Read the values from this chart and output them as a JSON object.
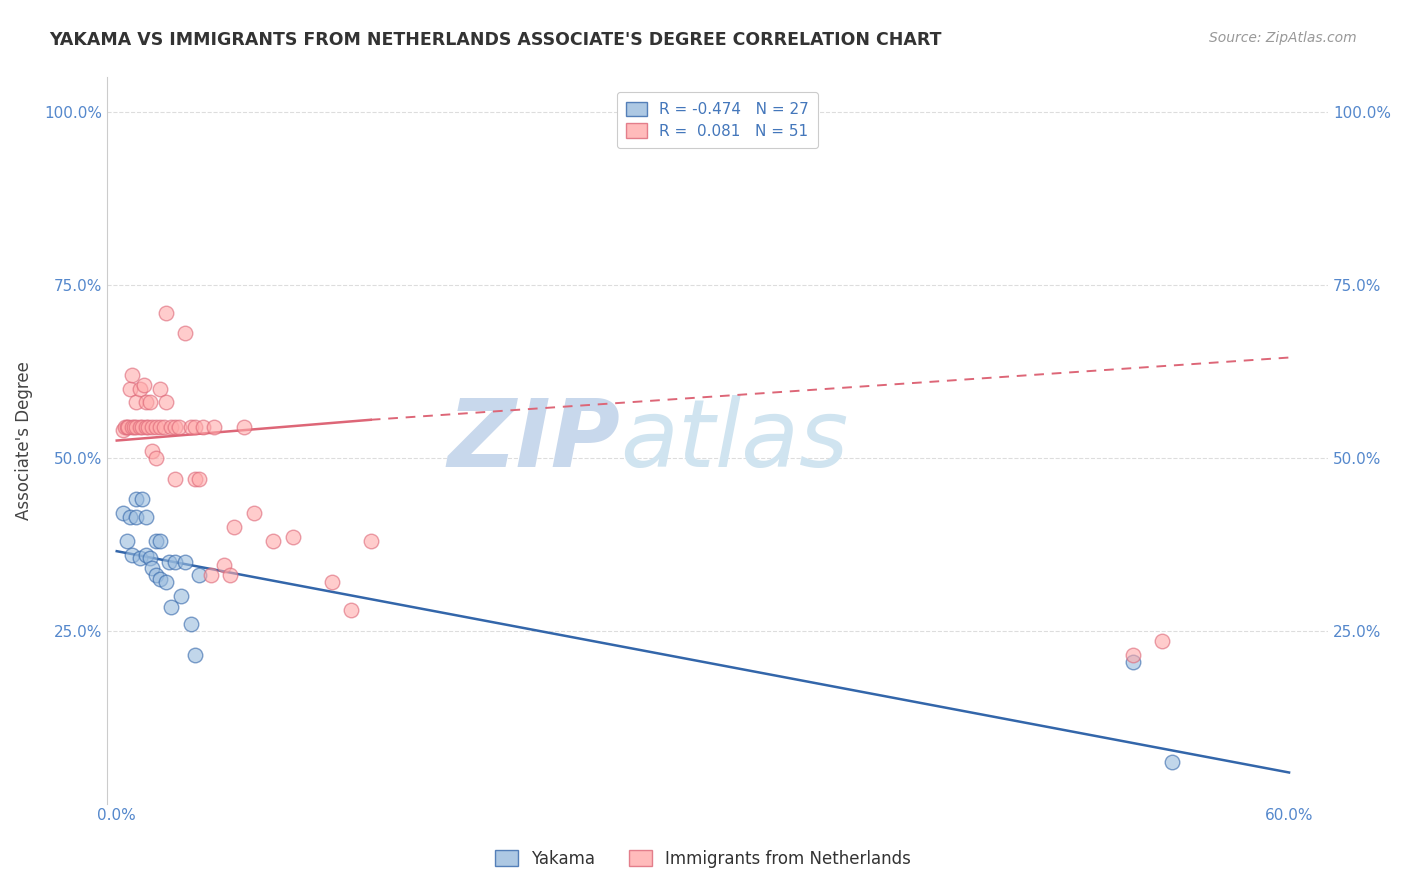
{
  "title": "YAKAMA VS IMMIGRANTS FROM NETHERLANDS ASSOCIATE'S DEGREE CORRELATION CHART",
  "source": "Source: ZipAtlas.com",
  "ylabel": "Associate's Degree",
  "xlabel_ticks": [
    "0.0%",
    "",
    "",
    "",
    "",
    "",
    "60.0%"
  ],
  "xlabel_vals": [
    0.0,
    0.1,
    0.2,
    0.3,
    0.4,
    0.5,
    0.6
  ],
  "ylabel_ticks": [
    "",
    "25.0%",
    "50.0%",
    "75.0%",
    "100.0%"
  ],
  "ylabel_vals": [
    0.0,
    0.25,
    0.5,
    0.75,
    1.0
  ],
  "right_ylabel_ticks": [
    "",
    "25.0%",
    "50.0%",
    "75.0%",
    "100.0%"
  ],
  "xlim": [
    -0.005,
    0.62
  ],
  "ylim": [
    0.0,
    1.05
  ],
  "legend1_label": "R = -0.474   N = 27",
  "legend2_label": "R =  0.081   N = 51",
  "blue_color": "#99BBDD",
  "pink_color": "#FFAAAA",
  "blue_line_color": "#3366AA",
  "pink_line_color": "#DD6677",
  "watermark_zip": "ZIP",
  "watermark_atlas": "atlas",
  "watermark_color": "#C8D8EC",
  "blue_scatter_x": [
    0.003,
    0.005,
    0.007,
    0.008,
    0.01,
    0.01,
    0.012,
    0.013,
    0.015,
    0.015,
    0.017,
    0.018,
    0.02,
    0.02,
    0.022,
    0.022,
    0.025,
    0.027,
    0.028,
    0.03,
    0.033,
    0.035,
    0.038,
    0.04,
    0.042,
    0.52,
    0.54
  ],
  "blue_scatter_y": [
    0.42,
    0.38,
    0.415,
    0.36,
    0.415,
    0.44,
    0.355,
    0.44,
    0.36,
    0.415,
    0.355,
    0.34,
    0.33,
    0.38,
    0.325,
    0.38,
    0.32,
    0.35,
    0.285,
    0.35,
    0.3,
    0.35,
    0.26,
    0.215,
    0.33,
    0.205,
    0.06
  ],
  "pink_scatter_x": [
    0.003,
    0.004,
    0.005,
    0.006,
    0.007,
    0.008,
    0.008,
    0.009,
    0.01,
    0.01,
    0.012,
    0.012,
    0.013,
    0.014,
    0.015,
    0.015,
    0.016,
    0.017,
    0.018,
    0.018,
    0.02,
    0.02,
    0.022,
    0.022,
    0.024,
    0.025,
    0.025,
    0.028,
    0.03,
    0.03,
    0.032,
    0.035,
    0.038,
    0.04,
    0.04,
    0.042,
    0.044,
    0.048,
    0.05,
    0.055,
    0.058,
    0.06,
    0.065,
    0.07,
    0.08,
    0.09,
    0.11,
    0.12,
    0.13,
    0.52,
    0.535
  ],
  "pink_scatter_y": [
    0.54,
    0.545,
    0.545,
    0.545,
    0.6,
    0.545,
    0.62,
    0.545,
    0.545,
    0.58,
    0.545,
    0.6,
    0.545,
    0.605,
    0.545,
    0.58,
    0.545,
    0.58,
    0.51,
    0.545,
    0.5,
    0.545,
    0.6,
    0.545,
    0.545,
    0.71,
    0.58,
    0.545,
    0.47,
    0.545,
    0.545,
    0.68,
    0.545,
    0.47,
    0.545,
    0.47,
    0.545,
    0.33,
    0.545,
    0.345,
    0.33,
    0.4,
    0.545,
    0.42,
    0.38,
    0.385,
    0.32,
    0.28,
    0.38,
    0.215,
    0.235
  ],
  "background_color": "#FFFFFF",
  "grid_color": "#DDDDDD"
}
